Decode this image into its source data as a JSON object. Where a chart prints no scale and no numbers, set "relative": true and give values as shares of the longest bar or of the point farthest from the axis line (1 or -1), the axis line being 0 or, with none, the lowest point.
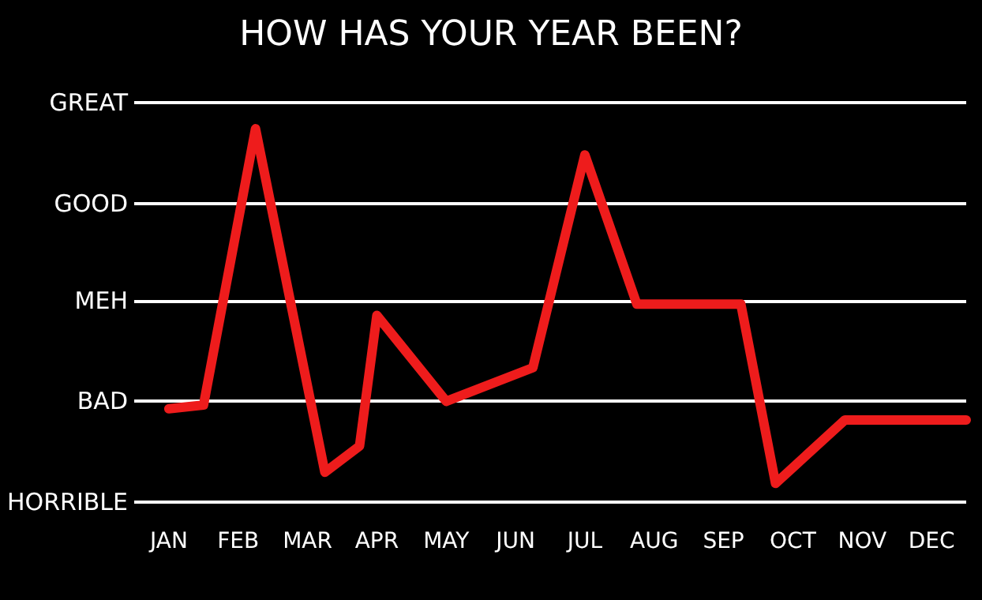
{
  "chart_data": {
    "type": "line",
    "title": "HOW HAS YOUR YEAR BEEN?",
    "relative": true,
    "categories": [
      null,
      null,
      "JAN",
      null,
      null,
      null,
      "FEB",
      null,
      null,
      null,
      "MAR",
      null,
      null,
      null,
      "APR",
      null,
      null,
      null,
      "MAY",
      null,
      null,
      null,
      "JUN",
      null,
      null,
      null,
      "JUL",
      null,
      null,
      null,
      "AUG",
      null,
      null,
      null,
      "SEP",
      null,
      null,
      null,
      "OCT",
      null,
      null,
      null,
      "NOV",
      null,
      null,
      null,
      "DEC",
      null,
      null
    ],
    "series": [
      {
        "color": "#ee1c1c",
        "values": [
          null,
          null,
          0.25,
          null,
          0.26,
          null,
          null,
          1,
          null,
          null,
          null,
          0.08,
          null,
          0.15,
          0.5,
          null,
          null,
          null,
          0.27,
          null,
          null,
          null,
          null,
          0.36,
          null,
          null,
          0.93,
          null,
          null,
          0.53,
          null,
          null,
          null,
          null,
          null,
          0.53,
          null,
          0.05,
          null,
          null,
          null,
          0.22,
          null,
          null,
          null,
          null,
          null,
          null,
          0.22
        ]
      }
    ],
    "ref_lines": [
      {
        "axis": "y",
        "value": 0,
        "label": "HORRIBLE",
        "color": "#ffffff"
      },
      {
        "axis": "y",
        "value": 0.27,
        "label": "BAD",
        "color": "#ffffff"
      },
      {
        "axis": "y",
        "value": 0.54,
        "label": "MEH",
        "color": "#ffffff"
      },
      {
        "axis": "y",
        "value": 0.8,
        "label": "GOOD",
        "color": "#ffffff"
      },
      {
        "axis": "y",
        "value": 1.07,
        "label": "GREAT",
        "color": "#ffffff"
      }
    ],
    "grid": false,
    "marker": "none",
    "line_style": "solid"
  }
}
